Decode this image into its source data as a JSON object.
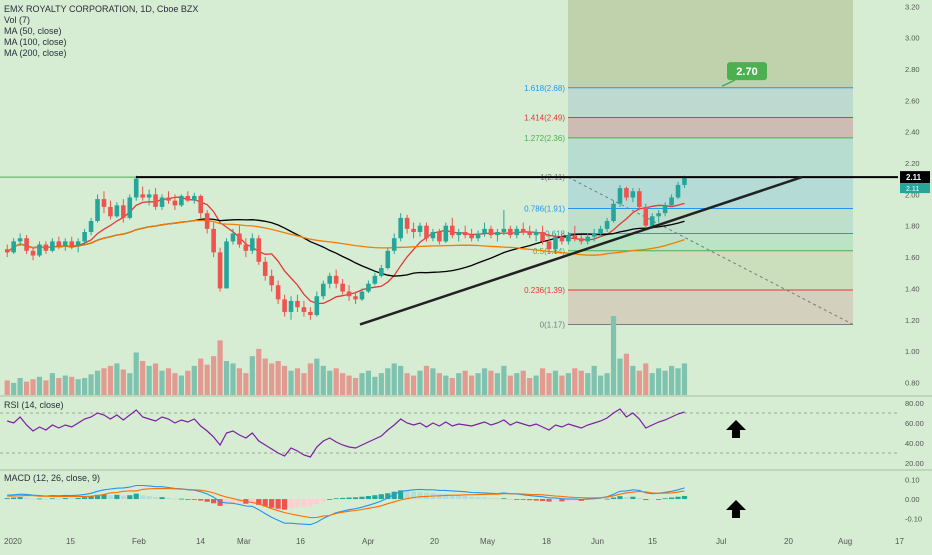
{
  "legend": {
    "title": "EMX ROYALTY CORPORATION, 1D, Cboe BZX",
    "items": [
      "Vol (7)",
      "MA (50, close)",
      "MA (100, close)",
      "MA (200, close)"
    ]
  },
  "rsi_label": "RSI (14, close)",
  "macd_label": "MACD (12, 26, close, 9)",
  "colors": {
    "background": "#d6edd3",
    "up": "#26a69a",
    "down": "#ef5350",
    "ma50": "#e53935",
    "ma100": "#000000",
    "ma200": "#f57c00",
    "rsi": "#7b1fa2",
    "macd_line": "#2196f3",
    "signal_line": "#ff6d00",
    "current_price_bg": "#000000",
    "target_bubble": "#4caf50"
  },
  "chart_data": [
    {
      "type": "candlestick",
      "title": "EMX ROYALTY CORPORATION, 1D, Cboe BZX",
      "x_ticks": [
        "2020",
        "15",
        "Feb",
        "14",
        "Mar",
        "16",
        "Apr",
        "20",
        "May",
        "18",
        "Jun",
        "15",
        "Jul",
        "20",
        "Aug",
        "17"
      ],
      "y_ticks": [
        "3.20",
        "3.00",
        "2.80",
        "2.60",
        "2.40",
        "2.20",
        "2.00",
        "1.80",
        "1.60",
        "1.40",
        "1.20",
        "1.00",
        "0.80"
      ],
      "y_range": [
        0.72,
        3.24
      ],
      "last_price": "2.11",
      "last_price_sub": "2.11",
      "candles": [
        [
          1.65,
          1.68,
          1.6,
          1.63
        ],
        [
          1.63,
          1.72,
          1.62,
          1.7
        ],
        [
          1.7,
          1.75,
          1.67,
          1.72
        ],
        [
          1.72,
          1.74,
          1.62,
          1.64
        ],
        [
          1.64,
          1.66,
          1.58,
          1.61
        ],
        [
          1.61,
          1.7,
          1.6,
          1.68
        ],
        [
          1.68,
          1.7,
          1.62,
          1.64
        ],
        [
          1.64,
          1.72,
          1.63,
          1.7
        ],
        [
          1.7,
          1.73,
          1.65,
          1.67
        ],
        [
          1.67,
          1.72,
          1.64,
          1.7
        ],
        [
          1.7,
          1.73,
          1.65,
          1.67
        ],
        [
          1.67,
          1.72,
          1.63,
          1.7
        ],
        [
          1.7,
          1.78,
          1.68,
          1.76
        ],
        [
          1.76,
          1.85,
          1.74,
          1.83
        ],
        [
          1.83,
          2.0,
          1.82,
          1.97
        ],
        [
          1.97,
          2.02,
          1.88,
          1.92
        ],
        [
          1.92,
          1.96,
          1.84,
          1.86
        ],
        [
          1.86,
          1.95,
          1.85,
          1.93
        ],
        [
          1.93,
          1.97,
          1.82,
          1.85
        ],
        [
          1.85,
          2.0,
          1.84,
          1.98
        ],
        [
          1.98,
          2.12,
          1.96,
          2.1
        ],
        [
          2.0,
          2.05,
          1.96,
          1.98
        ],
        [
          1.98,
          2.03,
          1.93,
          2.0
        ],
        [
          2.0,
          2.04,
          1.9,
          1.92
        ],
        [
          1.92,
          2.0,
          1.9,
          1.98
        ],
        [
          1.98,
          2.02,
          1.94,
          1.96
        ],
        [
          1.96,
          2.0,
          1.9,
          1.93
        ],
        [
          1.93,
          2.0,
          1.92,
          1.99
        ],
        [
          1.99,
          2.02,
          1.95,
          1.96
        ],
        [
          1.96,
          2.01,
          1.94,
          1.99
        ],
        [
          1.99,
          2.0,
          1.85,
          1.88
        ],
        [
          1.88,
          1.9,
          1.75,
          1.78
        ],
        [
          1.78,
          1.82,
          1.6,
          1.63
        ],
        [
          1.63,
          1.66,
          1.38,
          1.4
        ],
        [
          1.4,
          1.72,
          1.4,
          1.7
        ],
        [
          1.7,
          1.78,
          1.68,
          1.75
        ],
        [
          1.75,
          1.8,
          1.66,
          1.68
        ],
        [
          1.68,
          1.72,
          1.6,
          1.64
        ],
        [
          1.64,
          1.75,
          1.62,
          1.72
        ],
        [
          1.72,
          1.74,
          1.55,
          1.57
        ],
        [
          1.57,
          1.6,
          1.45,
          1.48
        ],
        [
          1.48,
          1.52,
          1.38,
          1.42
        ],
        [
          1.42,
          1.45,
          1.3,
          1.33
        ],
        [
          1.33,
          1.36,
          1.22,
          1.25
        ],
        [
          1.25,
          1.35,
          1.2,
          1.32
        ],
        [
          1.32,
          1.36,
          1.25,
          1.28
        ],
        [
          1.28,
          1.32,
          1.22,
          1.25
        ],
        [
          1.25,
          1.28,
          1.2,
          1.23
        ],
        [
          1.23,
          1.38,
          1.22,
          1.35
        ],
        [
          1.35,
          1.45,
          1.33,
          1.43
        ],
        [
          1.43,
          1.5,
          1.4,
          1.48
        ],
        [
          1.48,
          1.52,
          1.4,
          1.43
        ],
        [
          1.43,
          1.46,
          1.36,
          1.38
        ],
        [
          1.38,
          1.42,
          1.32,
          1.35
        ],
        [
          1.35,
          1.38,
          1.3,
          1.33
        ],
        [
          1.33,
          1.4,
          1.32,
          1.38
        ],
        [
          1.38,
          1.45,
          1.37,
          1.43
        ],
        [
          1.43,
          1.5,
          1.42,
          1.48
        ],
        [
          1.48,
          1.55,
          1.47,
          1.53
        ],
        [
          1.53,
          1.66,
          1.52,
          1.64
        ],
        [
          1.64,
          1.75,
          1.62,
          1.72
        ],
        [
          1.72,
          1.88,
          1.7,
          1.85
        ],
        [
          1.85,
          1.87,
          1.75,
          1.78
        ],
        [
          1.78,
          1.82,
          1.72,
          1.76
        ],
        [
          1.76,
          1.82,
          1.73,
          1.8
        ],
        [
          1.8,
          1.82,
          1.7,
          1.72
        ],
        [
          1.72,
          1.78,
          1.7,
          1.76
        ],
        [
          1.76,
          1.78,
          1.68,
          1.7
        ],
        [
          1.7,
          1.82,
          1.69,
          1.8
        ],
        [
          1.8,
          1.85,
          1.72,
          1.74
        ],
        [
          1.74,
          1.78,
          1.7,
          1.76
        ],
        [
          1.76,
          1.8,
          1.72,
          1.74
        ],
        [
          1.74,
          1.78,
          1.7,
          1.72
        ],
        [
          1.72,
          1.77,
          1.7,
          1.75
        ],
        [
          1.75,
          1.82,
          1.73,
          1.78
        ],
        [
          1.78,
          1.8,
          1.72,
          1.74
        ],
        [
          1.74,
          1.78,
          1.7,
          1.76
        ],
        [
          1.76,
          1.9,
          1.74,
          1.78
        ],
        [
          1.78,
          1.8,
          1.72,
          1.74
        ],
        [
          1.74,
          1.8,
          1.72,
          1.78
        ],
        [
          1.78,
          1.82,
          1.74,
          1.76
        ],
        [
          1.76,
          1.8,
          1.72,
          1.74
        ],
        [
          1.74,
          1.78,
          1.7,
          1.76
        ],
        [
          1.76,
          1.8,
          1.68,
          1.7
        ],
        [
          1.7,
          1.75,
          1.62,
          1.65
        ],
        [
          1.65,
          1.75,
          1.62,
          1.73
        ],
        [
          1.73,
          1.75,
          1.68,
          1.7
        ],
        [
          1.7,
          1.76,
          1.68,
          1.74
        ],
        [
          1.74,
          1.8,
          1.7,
          1.72
        ],
        [
          1.72,
          1.74,
          1.68,
          1.7
        ],
        [
          1.7,
          1.75,
          1.68,
          1.73
        ],
        [
          1.73,
          1.78,
          1.7,
          1.75
        ],
        [
          1.75,
          1.8,
          1.73,
          1.78
        ],
        [
          1.78,
          1.85,
          1.76,
          1.83
        ],
        [
          1.83,
          1.96,
          1.82,
          1.94
        ],
        [
          1.94,
          2.06,
          1.92,
          2.04
        ],
        [
          2.04,
          2.05,
          1.96,
          1.98
        ],
        [
          1.98,
          2.04,
          1.95,
          2.02
        ],
        [
          2.02,
          2.04,
          1.9,
          1.92
        ],
        [
          1.92,
          1.94,
          1.78,
          1.8
        ],
        [
          1.8,
          1.88,
          1.78,
          1.86
        ],
        [
          1.86,
          1.9,
          1.82,
          1.88
        ],
        [
          1.88,
          1.95,
          1.86,
          1.93
        ],
        [
          1.93,
          2.0,
          1.92,
          1.98
        ],
        [
          1.98,
          2.08,
          1.97,
          2.06
        ],
        [
          2.06,
          2.12,
          2.04,
          2.11
        ]
      ],
      "volume": [
        12,
        10,
        14,
        11,
        13,
        15,
        12,
        18,
        14,
        16,
        15,
        13,
        14,
        17,
        20,
        22,
        24,
        26,
        21,
        18,
        35,
        28,
        24,
        26,
        20,
        22,
        18,
        16,
        20,
        24,
        30,
        25,
        32,
        45,
        28,
        26,
        22,
        18,
        32,
        38,
        30,
        26,
        28,
        24,
        20,
        22,
        18,
        26,
        30,
        24,
        20,
        22,
        18,
        16,
        14,
        18,
        20,
        15,
        18,
        22,
        26,
        24,
        18,
        16,
        20,
        24,
        22,
        18,
        16,
        14,
        18,
        20,
        16,
        18,
        22,
        20,
        18,
        24,
        16,
        18,
        20,
        14,
        16,
        22,
        18,
        20,
        16,
        18,
        22,
        20,
        18,
        24,
        16,
        18,
        65,
        30,
        34,
        24,
        20,
        26,
        18,
        22,
        20,
        24,
        22,
        26
      ],
      "fibonacci": [
        {
          "label": "1.618(2.68)",
          "price": 2.68,
          "color": "#2196f3"
        },
        {
          "label": "1.414(2.49)",
          "price": 2.49,
          "color": "#e53935"
        },
        {
          "label": "1.272(2.36)",
          "price": 2.36,
          "color": "#4caf50"
        },
        {
          "label": "1(2.11)",
          "price": 2.11,
          "color": "#787b86"
        },
        {
          "label": "0.786(1.91)",
          "price": 1.91,
          "color": "#2196f3"
        },
        {
          "label": "0.618",
          "price": 1.75,
          "color": "#26a69a"
        },
        {
          "label": "0.5(1.64)",
          "price": 1.64,
          "color": "#4caf50"
        },
        {
          "label": "0.236(1.39)",
          "price": 1.39,
          "color": "#e53935"
        },
        {
          "label": "0(1.17)",
          "price": 1.17,
          "color": "#787b86"
        }
      ],
      "target_label": "2.70",
      "resistance_level": 2.11
    },
    {
      "type": "line",
      "title": "RSI (14, close)",
      "y_ticks": [
        "80.00",
        "60.00",
        "40.00",
        "20.00"
      ],
      "y_range": [
        15,
        85
      ],
      "values": [
        62,
        60,
        66,
        58,
        52,
        56,
        53,
        58,
        55,
        58,
        56,
        60,
        64,
        66,
        70,
        68,
        64,
        68,
        63,
        68,
        73,
        66,
        64,
        62,
        66,
        64,
        60,
        63,
        61,
        64,
        57,
        52,
        46,
        38,
        50,
        52,
        48,
        45,
        50,
        42,
        38,
        34,
        30,
        27,
        35,
        32,
        28,
        26,
        36,
        42,
        45,
        41,
        38,
        36,
        35,
        38,
        41,
        44,
        47,
        53,
        58,
        64,
        60,
        58,
        60,
        56,
        60,
        57,
        61,
        57,
        59,
        58,
        57,
        59,
        61,
        58,
        60,
        63,
        58,
        61,
        59,
        57,
        59,
        56,
        53,
        58,
        56,
        59,
        57,
        55,
        58,
        60,
        62,
        65,
        70,
        74,
        66,
        70,
        64,
        55,
        58,
        61,
        63,
        66,
        69,
        71
      ]
    },
    {
      "type": "bar",
      "title": "MACD (12, 26, close, 9)",
      "y_ticks": [
        "0.10",
        "0.00",
        "-0.10"
      ],
      "y_range": [
        -0.16,
        0.14
      ],
      "histogram": [
        0.005,
        0.008,
        0.01,
        0.006,
        0.002,
        0.003,
        0.001,
        0.004,
        0.003,
        0.005,
        0.004,
        0.006,
        0.01,
        0.015,
        0.022,
        0.024,
        0.02,
        0.022,
        0.018,
        0.02,
        0.028,
        0.02,
        0.015,
        0.01,
        0.01,
        0.006,
        0.002,
        0.002,
        -0.002,
        -0.002,
        -0.008,
        -0.014,
        -0.022,
        -0.035,
        -0.03,
        -0.025,
        -0.022,
        -0.024,
        -0.02,
        -0.03,
        -0.038,
        -0.045,
        -0.05,
        -0.055,
        -0.048,
        -0.044,
        -0.04,
        -0.036,
        -0.025,
        -0.012,
        0.0,
        0.004,
        0.006,
        0.008,
        0.009,
        0.012,
        0.016,
        0.02,
        0.025,
        0.03,
        0.038,
        0.045,
        0.042,
        0.04,
        0.038,
        0.034,
        0.032,
        0.028,
        0.026,
        0.022,
        0.02,
        0.016,
        0.012,
        0.01,
        0.008,
        0.005,
        0.003,
        0.004,
        0.0,
        -0.002,
        -0.004,
        -0.006,
        -0.008,
        -0.01,
        -0.013,
        -0.01,
        -0.012,
        -0.01,
        -0.008,
        -0.009,
        -0.006,
        -0.004,
        -0.002,
        0.002,
        0.008,
        0.015,
        0.01,
        0.012,
        0.006,
        -0.005,
        -0.004,
        0.0,
        0.004,
        0.008,
        0.012,
        0.016
      ],
      "macd": [
        0.02,
        0.022,
        0.025,
        0.024,
        0.02,
        0.018,
        0.016,
        0.018,
        0.017,
        0.019,
        0.018,
        0.02,
        0.024,
        0.03,
        0.04,
        0.048,
        0.052,
        0.056,
        0.058,
        0.062,
        0.07,
        0.07,
        0.068,
        0.064,
        0.064,
        0.06,
        0.055,
        0.053,
        0.048,
        0.046,
        0.038,
        0.026,
        0.01,
        -0.015,
        -0.02,
        -0.022,
        -0.028,
        -0.036,
        -0.038,
        -0.055,
        -0.075,
        -0.095,
        -0.11,
        -0.125,
        -0.125,
        -0.128,
        -0.13,
        -0.132,
        -0.12,
        -0.1,
        -0.085,
        -0.07,
        -0.062,
        -0.055,
        -0.05,
        -0.042,
        -0.032,
        -0.022,
        -0.01,
        0.006,
        0.024,
        0.04,
        0.044,
        0.048,
        0.05,
        0.048,
        0.048,
        0.045,
        0.045,
        0.042,
        0.04,
        0.038,
        0.034,
        0.033,
        0.032,
        0.03,
        0.028,
        0.032,
        0.028,
        0.026,
        0.022,
        0.018,
        0.015,
        0.012,
        0.006,
        0.006,
        0.002,
        0.0,
        0.0,
        -0.002,
        0.0,
        0.002,
        0.005,
        0.012,
        0.025,
        0.04,
        0.042,
        0.048,
        0.045,
        0.032,
        0.028,
        0.03,
        0.035,
        0.04,
        0.048,
        0.058
      ],
      "signal": [
        0.015,
        0.016,
        0.017,
        0.018,
        0.018,
        0.015,
        0.015,
        0.014,
        0.014,
        0.014,
        0.014,
        0.014,
        0.014,
        0.015,
        0.018,
        0.024,
        0.032,
        0.034,
        0.04,
        0.042,
        0.042,
        0.05,
        0.053,
        0.054,
        0.054,
        0.054,
        0.053,
        0.051,
        0.05,
        0.048,
        0.046,
        0.04,
        0.032,
        0.02,
        0.01,
        0.003,
        -0.006,
        -0.012,
        -0.018,
        -0.025,
        -0.037,
        -0.05,
        -0.06,
        -0.07,
        -0.077,
        -0.084,
        -0.09,
        -0.096,
        -0.095,
        -0.088,
        -0.085,
        -0.074,
        -0.068,
        -0.063,
        -0.059,
        -0.054,
        -0.048,
        -0.042,
        -0.035,
        -0.024,
        -0.014,
        -0.005,
        0.002,
        0.008,
        0.012,
        0.014,
        0.016,
        0.017,
        0.019,
        0.02,
        0.02,
        0.022,
        0.022,
        0.023,
        0.024,
        0.025,
        0.025,
        0.028,
        0.028,
        0.028,
        0.026,
        0.024,
        0.023,
        0.022,
        0.019,
        0.016,
        0.014,
        0.01,
        0.008,
        0.007,
        0.006,
        0.006,
        0.007,
        0.01,
        0.017,
        0.025,
        0.032,
        0.036,
        0.039,
        0.037,
        0.032,
        0.03,
        0.031,
        0.032,
        0.036,
        0.042
      ]
    }
  ]
}
